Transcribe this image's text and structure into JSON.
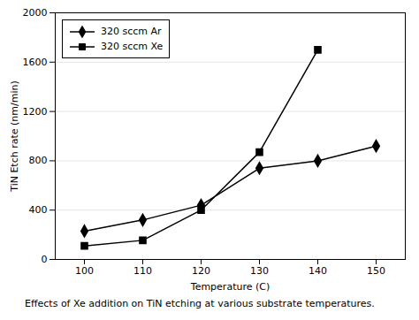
{
  "chart_data": {
    "type": "line",
    "caption": "Effects of Xe addition on TiN etching at various substrate temperatures.",
    "xlabel": "Temperature (C)",
    "ylabel": "TiN Etch rate (nm/min)",
    "x": [
      100,
      110,
      120,
      130,
      140,
      150
    ],
    "series": [
      {
        "name": "320 sccm Ar",
        "color": "#000000",
        "marker": "diamond",
        "values": [
          230,
          320,
          440,
          740,
          800,
          920
        ]
      },
      {
        "name": "320 sccm Xe",
        "color": "#000000",
        "marker": "square",
        "values": [
          110,
          155,
          400,
          870,
          1700,
          null
        ]
      }
    ],
    "xlim": [
      95,
      155
    ],
    "ylim": [
      0,
      2000
    ],
    "xticks": [
      100,
      110,
      120,
      130,
      140,
      150
    ],
    "yticks": [
      0,
      400,
      800,
      1200,
      1600,
      2000
    ],
    "grid": "y",
    "legend": "upper left"
  }
}
